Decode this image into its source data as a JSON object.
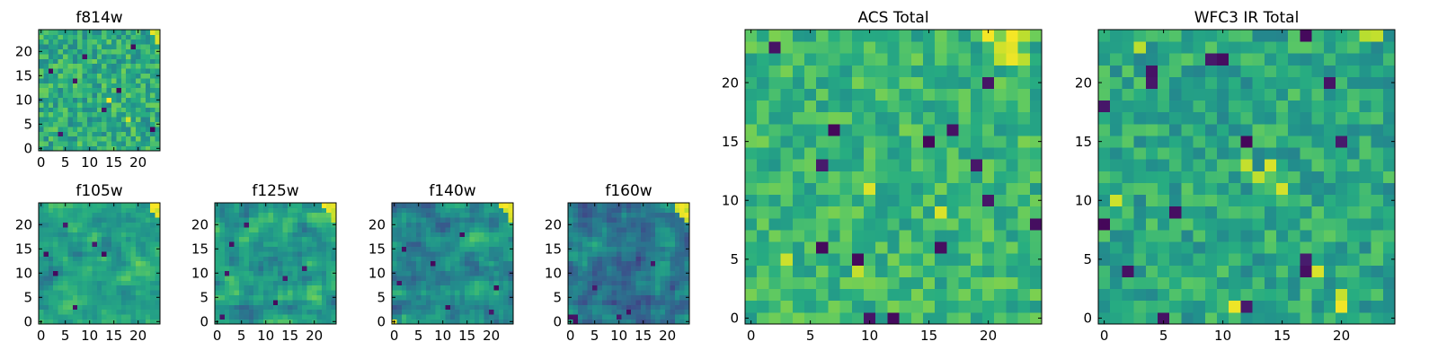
{
  "figure_title": "",
  "chart_data": [
    {
      "type": "heatmap",
      "title": "f814w",
      "size": 25,
      "colormap": "viridis",
      "seed": 814,
      "xticks": [
        0,
        5,
        10,
        15,
        20
      ],
      "xtick_labels": [
        "0",
        "5",
        "10",
        "15",
        "20"
      ],
      "yticks": [
        0,
        5,
        10,
        15,
        20
      ],
      "ytick_labels": [
        "0",
        "5",
        "10",
        "15",
        "20"
      ],
      "xlim": [
        -0.5,
        24.5
      ],
      "ylim": [
        -0.5,
        24.5
      ],
      "value_range": [
        0,
        1
      ],
      "smooth": 0,
      "base": 0.62,
      "spread": 0.17,
      "dark_cells": [
        [
          23,
          4
        ],
        [
          19,
          21
        ],
        [
          13,
          8
        ],
        [
          7,
          14
        ],
        [
          4,
          3
        ],
        [
          9,
          19
        ],
        [
          16,
          12
        ],
        [
          2,
          16
        ]
      ],
      "bright_cells": [
        [
          24,
          22
        ],
        [
          24,
          23
        ],
        [
          24,
          24
        ],
        [
          23,
          24
        ],
        [
          14,
          10
        ],
        [
          18,
          6
        ]
      ]
    },
    {
      "type": "heatmap",
      "title": "f105w",
      "size": 25,
      "colormap": "viridis",
      "seed": 105,
      "xticks": [
        0,
        5,
        10,
        15,
        20
      ],
      "xtick_labels": [
        "0",
        "5",
        "10",
        "15",
        "20"
      ],
      "yticks": [
        0,
        5,
        10,
        15,
        20
      ],
      "ytick_labels": [
        "0",
        "5",
        "10",
        "15",
        "20"
      ],
      "xlim": [
        -0.5,
        24.5
      ],
      "ylim": [
        -0.5,
        24.5
      ],
      "value_range": [
        0,
        1
      ],
      "smooth": 1,
      "base": 0.58,
      "spread": 0.2,
      "dark_cells": [
        [
          13,
          14
        ],
        [
          7,
          3
        ],
        [
          3,
          10
        ],
        [
          1,
          14
        ],
        [
          11,
          16
        ],
        [
          5,
          20
        ]
      ],
      "bright_cells": [
        [
          24,
          22
        ],
        [
          24,
          23
        ],
        [
          24,
          24
        ],
        [
          23,
          24
        ],
        [
          23,
          23
        ]
      ]
    },
    {
      "type": "heatmap",
      "title": "f125w",
      "size": 25,
      "colormap": "viridis",
      "seed": 125,
      "xticks": [
        0,
        5,
        10,
        15,
        20
      ],
      "xtick_labels": [
        "0",
        "5",
        "10",
        "15",
        "20"
      ],
      "yticks": [
        0,
        5,
        10,
        15,
        20
      ],
      "ytick_labels": [
        "0",
        "5",
        "10",
        "15",
        "20"
      ],
      "xlim": [
        -0.5,
        24.5
      ],
      "ylim": [
        -0.5,
        24.5
      ],
      "value_range": [
        0,
        1
      ],
      "smooth": 1,
      "base": 0.55,
      "spread": 0.22,
      "dark_cells": [
        [
          2,
          10
        ],
        [
          3,
          16
        ],
        [
          12,
          4
        ],
        [
          14,
          9
        ],
        [
          18,
          11
        ],
        [
          6,
          20
        ],
        [
          1,
          1
        ]
      ],
      "bright_cells": [
        [
          24,
          21
        ],
        [
          24,
          22
        ],
        [
          24,
          23
        ],
        [
          24,
          24
        ],
        [
          23,
          24
        ],
        [
          22,
          24
        ],
        [
          23,
          23
        ]
      ]
    },
    {
      "type": "heatmap",
      "title": "f140w",
      "size": 25,
      "colormap": "viridis",
      "seed": 140,
      "xticks": [
        0,
        5,
        10,
        15,
        20
      ],
      "xtick_labels": [
        "0",
        "5",
        "10",
        "15",
        "20"
      ],
      "yticks": [
        0,
        5,
        10,
        15,
        20
      ],
      "ytick_labels": [
        "0",
        "5",
        "10",
        "15",
        "20"
      ],
      "xlim": [
        -0.5,
        24.5
      ],
      "ylim": [
        -0.5,
        24.5
      ],
      "value_range": [
        0,
        1
      ],
      "smooth": 1,
      "base": 0.5,
      "spread": 0.24,
      "dark_cells": [
        [
          21,
          7
        ],
        [
          1,
          8
        ],
        [
          2,
          15
        ],
        [
          11,
          3
        ],
        [
          14,
          18
        ],
        [
          8,
          12
        ],
        [
          20,
          2
        ]
      ],
      "bright_cells": [
        [
          24,
          21
        ],
        [
          24,
          22
        ],
        [
          24,
          23
        ],
        [
          24,
          24
        ],
        [
          23,
          24
        ],
        [
          22,
          24
        ],
        [
          23,
          23
        ],
        [
          0,
          0
        ]
      ]
    },
    {
      "type": "heatmap",
      "title": "f160w",
      "size": 25,
      "colormap": "viridis",
      "seed": 160,
      "xticks": [
        0,
        5,
        10,
        15,
        20
      ],
      "xtick_labels": [
        "0",
        "5",
        "10",
        "15",
        "20"
      ],
      "yticks": [
        0,
        5,
        10,
        15,
        20
      ],
      "ytick_labels": [
        "0",
        "5",
        "10",
        "15",
        "20"
      ],
      "xlim": [
        -0.5,
        24.5
      ],
      "ylim": [
        -0.5,
        24.5
      ],
      "value_range": [
        0,
        1
      ],
      "smooth": 1,
      "base": 0.42,
      "spread": 0.22,
      "dark_cells": [
        [
          1,
          1
        ],
        [
          0,
          1
        ],
        [
          1,
          0
        ],
        [
          10,
          1
        ],
        [
          12,
          2
        ],
        [
          5,
          7
        ],
        [
          17,
          12
        ]
      ],
      "bright_cells": [
        [
          24,
          21
        ],
        [
          24,
          22
        ],
        [
          24,
          23
        ],
        [
          24,
          24
        ],
        [
          23,
          24
        ],
        [
          22,
          24
        ],
        [
          23,
          23
        ],
        [
          23,
          22
        ],
        [
          22,
          23
        ]
      ]
    },
    {
      "type": "heatmap",
      "title": "ACS Total",
      "size": 25,
      "colormap": "viridis",
      "seed": 2001,
      "xticks": [
        0,
        5,
        10,
        15,
        20
      ],
      "xtick_labels": [
        "0",
        "5",
        "10",
        "15",
        "20"
      ],
      "yticks": [
        0,
        5,
        10,
        15,
        20
      ],
      "ytick_labels": [
        "0",
        "5",
        "10",
        "15",
        "20"
      ],
      "xlim": [
        -0.5,
        24.5
      ],
      "ylim": [
        -0.5,
        24.5
      ],
      "value_range": [
        0,
        1
      ],
      "smooth": 0,
      "base": 0.66,
      "spread": 0.14,
      "dark_cells": [
        [
          2,
          23
        ],
        [
          20,
          20
        ],
        [
          7,
          16
        ],
        [
          15,
          15
        ],
        [
          17,
          16
        ],
        [
          6,
          13
        ],
        [
          19,
          13
        ],
        [
          20,
          10
        ],
        [
          9,
          5
        ],
        [
          24,
          8
        ],
        [
          10,
          0
        ],
        [
          12,
          0
        ],
        [
          16,
          6
        ],
        [
          6,
          6
        ]
      ],
      "bright_cells": [
        [
          21,
          23
        ],
        [
          22,
          23
        ],
        [
          22,
          22
        ],
        [
          23,
          22
        ],
        [
          21,
          22
        ],
        [
          23,
          24
        ],
        [
          22,
          24
        ],
        [
          20,
          24
        ],
        [
          10,
          11
        ],
        [
          16,
          9
        ],
        [
          3,
          5
        ],
        [
          9,
          4
        ]
      ]
    },
    {
      "type": "heatmap",
      "title": "WFC3 IR Total",
      "size": 25,
      "colormap": "viridis",
      "seed": 3001,
      "xticks": [
        0,
        5,
        10,
        15,
        20
      ],
      "xtick_labels": [
        "0",
        "5",
        "10",
        "15",
        "20"
      ],
      "yticks": [
        0,
        5,
        10,
        15,
        20
      ],
      "ytick_labels": [
        "0",
        "5",
        "10",
        "15",
        "20"
      ],
      "xlim": [
        -0.5,
        24.5
      ],
      "ylim": [
        -0.5,
        24.5
      ],
      "value_range": [
        0,
        1
      ],
      "smooth": 0,
      "base": 0.6,
      "spread": 0.15,
      "dark_cells": [
        [
          17,
          24
        ],
        [
          9,
          22
        ],
        [
          10,
          22
        ],
        [
          4,
          20
        ],
        [
          4,
          21
        ],
        [
          0,
          18
        ],
        [
          19,
          20
        ],
        [
          12,
          15
        ],
        [
          20,
          15
        ],
        [
          0,
          8
        ],
        [
          2,
          4
        ],
        [
          6,
          9
        ],
        [
          17,
          4
        ],
        [
          17,
          5
        ],
        [
          5,
          0
        ],
        [
          12,
          1
        ]
      ],
      "bright_cells": [
        [
          22,
          24
        ],
        [
          23,
          24
        ],
        [
          12,
          13
        ],
        [
          13,
          12
        ],
        [
          14,
          13
        ],
        [
          15,
          11
        ],
        [
          18,
          4
        ],
        [
          20,
          2
        ],
        [
          20,
          1
        ],
        [
          11,
          1
        ],
        [
          3,
          23
        ],
        [
          1,
          10
        ]
      ]
    }
  ]
}
